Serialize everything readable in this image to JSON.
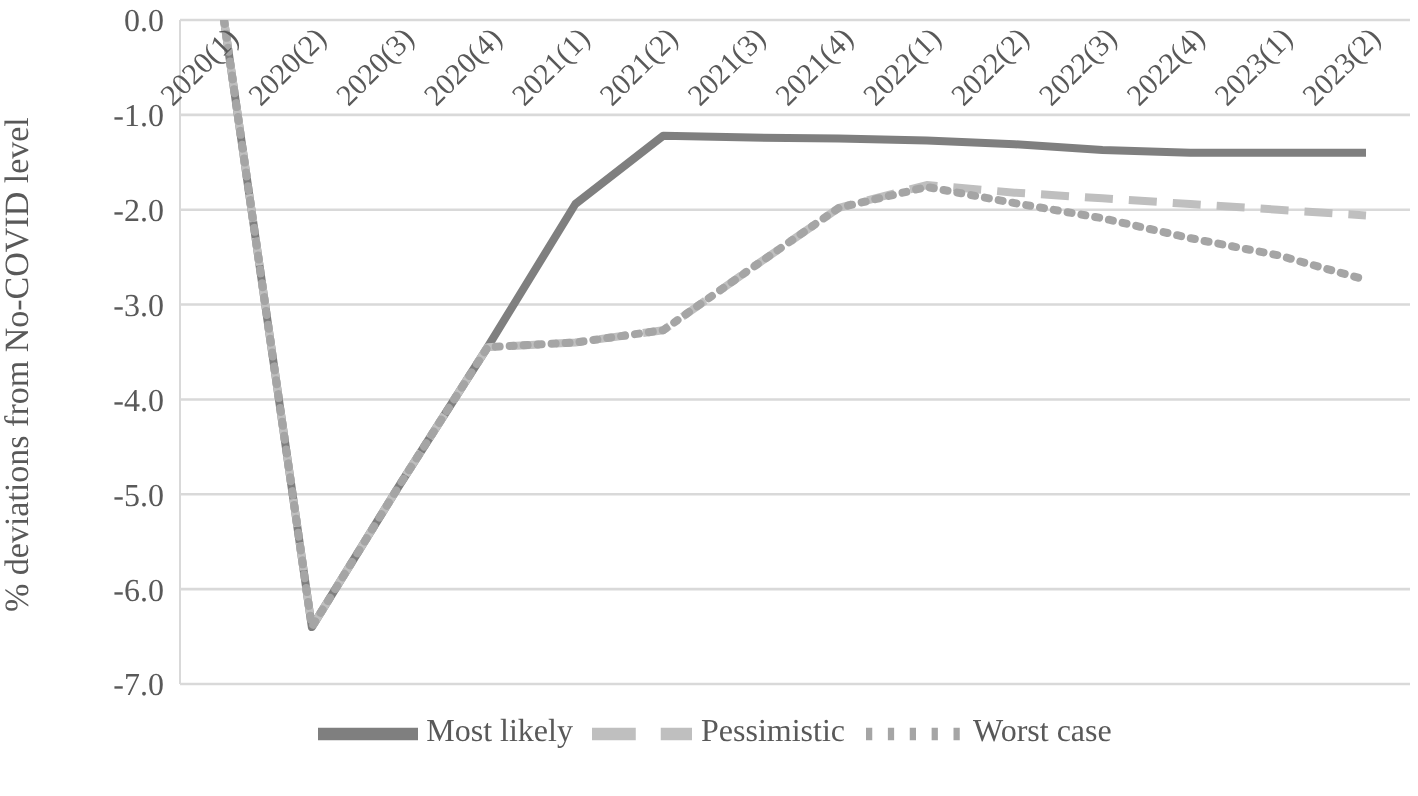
{
  "chart_data": {
    "type": "line",
    "ylabel": "% deviations from No-COVID level",
    "categories": [
      "2020(1)",
      "2020(2)",
      "2020(3)",
      "2020(4)",
      "2021(1)",
      "2021(2)",
      "2021(3)",
      "2021(4)",
      "2022(1)",
      "2022(2)",
      "2022(3)",
      "2022(4)",
      "2023(1)",
      "2023(2)"
    ],
    "series": [
      {
        "name": "Most likely",
        "color": "#7f7f7f",
        "line_style": "solid",
        "values": [
          0,
          -6.4,
          -4.9,
          -3.45,
          -1.94,
          -1.22,
          -1.24,
          -1.25,
          -1.27,
          -1.31,
          -1.37,
          -1.4,
          -1.4,
          -1.4
        ]
      },
      {
        "name": "Pessimistic",
        "color": "#bfbfbf",
        "line_style": "dashed",
        "values": [
          0,
          -6.4,
          -4.9,
          -3.45,
          -3.4,
          -3.27,
          -2.62,
          -1.98,
          -1.74,
          -1.82,
          -1.88,
          -1.94,
          -2.0,
          -2.06
        ]
      },
      {
        "name": "Worst case",
        "color": "#a5a5a5",
        "line_style": "dotted",
        "values": [
          0,
          -6.4,
          -4.9,
          -3.45,
          -3.4,
          -3.27,
          -2.62,
          -1.98,
          -1.76,
          -1.93,
          -2.09,
          -2.3,
          -2.48,
          -2.74
        ]
      }
    ],
    "ylim": [
      -7,
      0
    ],
    "yticks": [
      {
        "value": 0,
        "label": "0.0"
      },
      {
        "value": -1,
        "label": "-1.0"
      },
      {
        "value": -2,
        "label": "-2.0"
      },
      {
        "value": -3,
        "label": "-3.0"
      },
      {
        "value": -4,
        "label": "-4.0"
      },
      {
        "value": -5,
        "label": "-5.0"
      },
      {
        "value": -6,
        "label": "-6.0"
      },
      {
        "value": -7,
        "label": "-7.0"
      }
    ],
    "grid": "y",
    "legend": "bottom",
    "marker": "none"
  }
}
